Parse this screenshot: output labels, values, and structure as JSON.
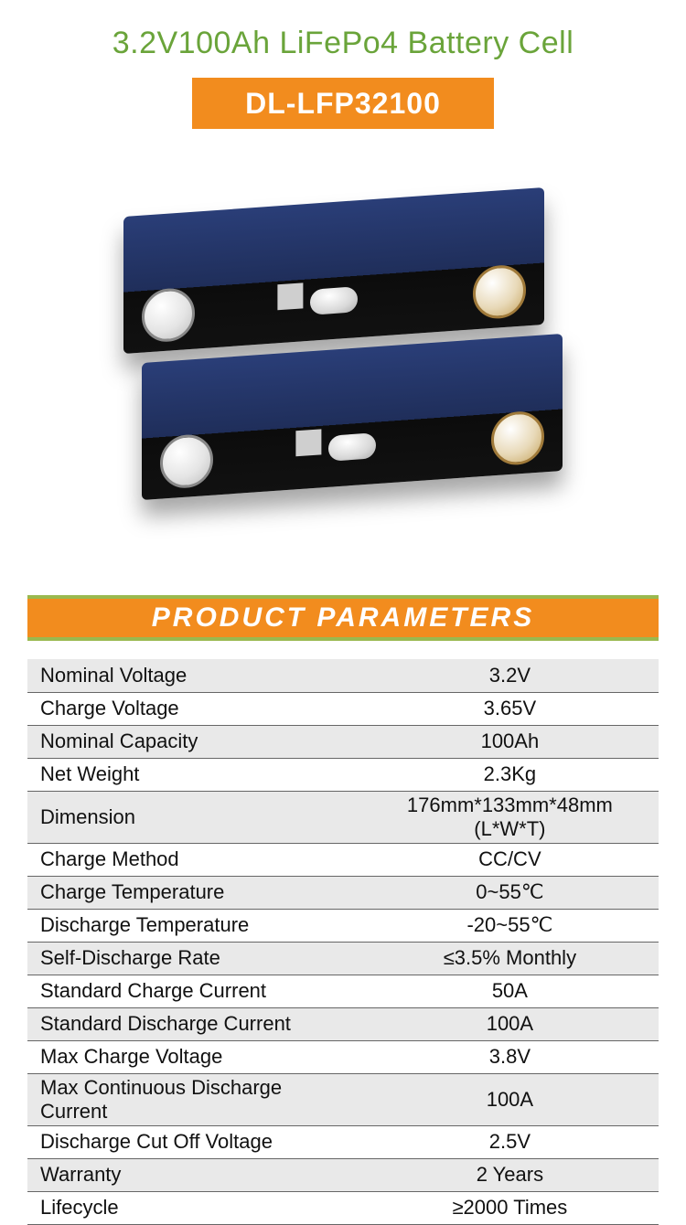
{
  "colors": {
    "title": "#6aa43a",
    "badge_bg": "#f28c1e",
    "badge_text": "#ffffff",
    "section_bg": "#f28c1e",
    "section_border": "#9ab94f",
    "section_text": "#ffffff",
    "row_stripe": "#e9e9e9",
    "row_plain": "#ffffff",
    "table_border": "#666666",
    "cell_body": "#2a3e78"
  },
  "header": {
    "title": "3.2V100Ah LiFePo4 Battery Cell",
    "model": "DL-LFP32100"
  },
  "section_title": "PRODUCT PARAMETERS",
  "specs": [
    {
      "label": "Nominal Voltage",
      "value": "3.2V"
    },
    {
      "label": "Charge Voltage",
      "value": "3.65V"
    },
    {
      "label": "Nominal Capacity",
      "value": "100Ah"
    },
    {
      "label": "Net Weight",
      "value": "2.3Kg"
    },
    {
      "label": "Dimension",
      "value": "176mm*133mm*48mm (L*W*T)"
    },
    {
      "label": "Charge Method",
      "value": "CC/CV"
    },
    {
      "label": "Charge Temperature",
      "value": "0~55℃"
    },
    {
      "label": "Discharge Temperature",
      "value": "-20~55℃"
    },
    {
      "label": "Self-Discharge Rate",
      "value": "≤3.5% Monthly"
    },
    {
      "label": "Standard Charge Current",
      "value": "50A"
    },
    {
      "label": "Standard Discharge Current",
      "value": "100A"
    },
    {
      "label": "Max Charge Voltage",
      "value": "3.8V"
    },
    {
      "label": "Max Continuous Discharge Current",
      "value": "100A"
    },
    {
      "label": "Discharge Cut Off Voltage",
      "value": "2.5V"
    },
    {
      "label": "Warranty",
      "value": "2 Years"
    },
    {
      "label": "Lifecycle",
      "value": "≥2000 Times"
    }
  ]
}
